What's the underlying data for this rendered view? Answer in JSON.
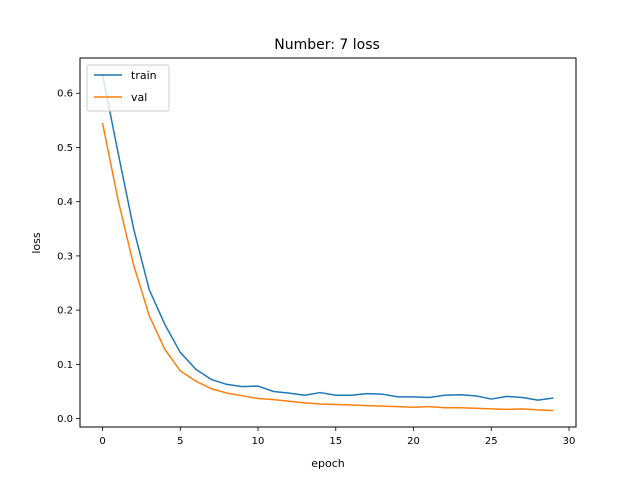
{
  "chart_data": {
    "type": "line",
    "title": "Number: 7 loss",
    "xlabel": "epoch",
    "ylabel": "loss",
    "xlim": [
      -1.45,
      30.45
    ],
    "ylim": [
      -0.0155,
      0.665
    ],
    "xticks": [
      0,
      5,
      10,
      15,
      20,
      25,
      30
    ],
    "yticks": [
      0.0,
      0.1,
      0.2,
      0.3,
      0.4,
      0.5,
      0.6
    ],
    "ytick_labels": [
      "0.0",
      "0.1",
      "0.2",
      "0.3",
      "0.4",
      "0.5",
      "0.6"
    ],
    "grid": false,
    "legend_position": "upper left",
    "x": [
      0,
      1,
      2,
      3,
      4,
      5,
      6,
      7,
      8,
      9,
      10,
      11,
      12,
      13,
      14,
      15,
      16,
      17,
      18,
      19,
      20,
      21,
      22,
      23,
      24,
      25,
      26,
      27,
      28,
      29
    ],
    "series": [
      {
        "name": "train",
        "color": "#1f77b4",
        "values": [
          0.634,
          0.49,
          0.35,
          0.238,
          0.174,
          0.122,
          0.091,
          0.072,
          0.063,
          0.059,
          0.06,
          0.05,
          0.047,
          0.043,
          0.048,
          0.043,
          0.043,
          0.046,
          0.045,
          0.04,
          0.04,
          0.039,
          0.043,
          0.044,
          0.042,
          0.036,
          0.041,
          0.039,
          0.034,
          0.038
        ]
      },
      {
        "name": "val",
        "color": "#ff7f0e",
        "values": [
          0.545,
          0.403,
          0.283,
          0.19,
          0.128,
          0.088,
          0.069,
          0.055,
          0.047,
          0.042,
          0.037,
          0.035,
          0.032,
          0.029,
          0.027,
          0.026,
          0.025,
          0.024,
          0.023,
          0.022,
          0.021,
          0.022,
          0.02,
          0.02,
          0.019,
          0.018,
          0.017,
          0.018,
          0.016,
          0.015
        ]
      }
    ]
  }
}
